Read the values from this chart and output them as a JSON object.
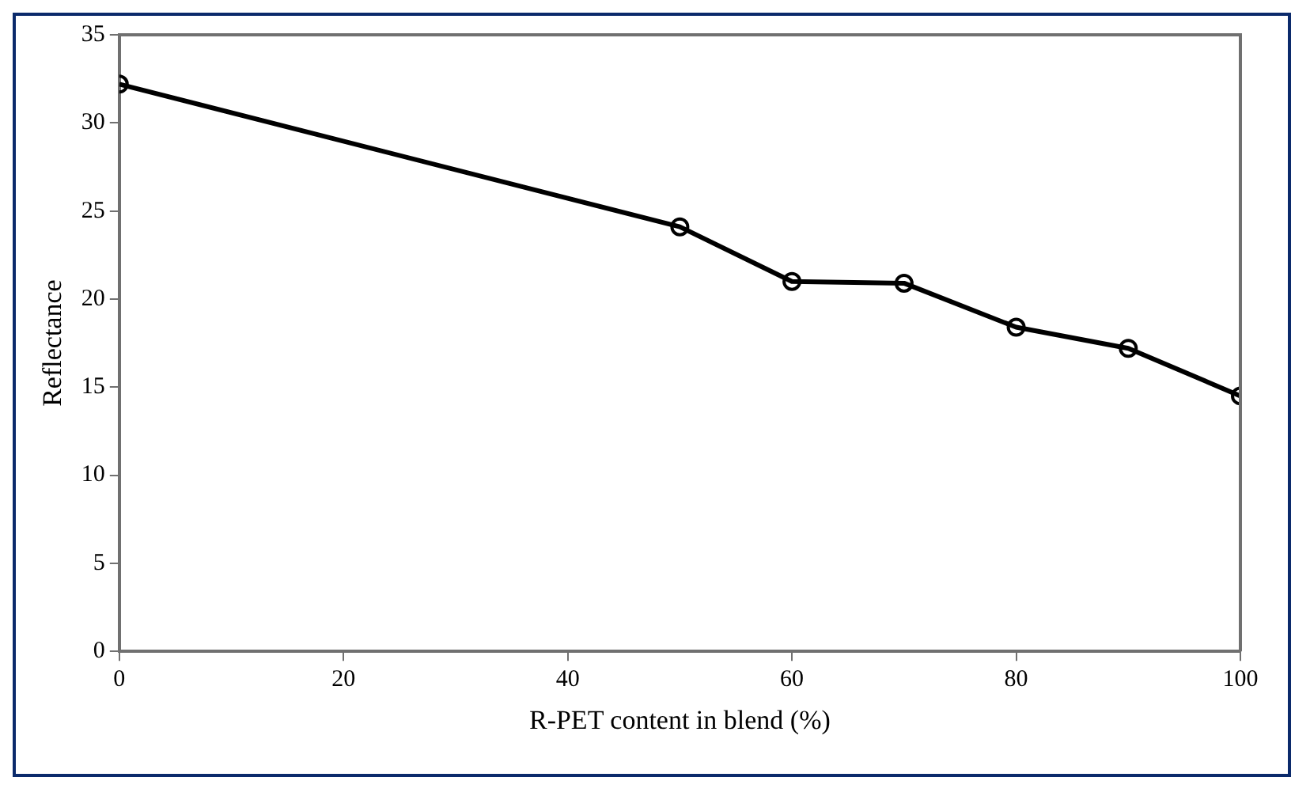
{
  "chart_data": {
    "type": "line",
    "xlabel": "R-PET content in blend (%)",
    "ylabel": "Reflectance",
    "x": [
      0,
      50,
      60,
      70,
      80,
      90,
      100
    ],
    "series": [
      {
        "color": "#000000",
        "values": [
          32.2,
          24.1,
          21.0,
          20.9,
          18.4,
          17.2,
          14.5
        ]
      }
    ],
    "xlim": [
      0,
      100
    ],
    "xticks": [
      0,
      20,
      40,
      60,
      80,
      100
    ],
    "ylim": [
      0,
      35
    ],
    "yticks": [
      0,
      5,
      10,
      15,
      20,
      25,
      30,
      35
    ],
    "grid": false,
    "legend": false,
    "marker": "circle",
    "line_style": "solid"
  }
}
